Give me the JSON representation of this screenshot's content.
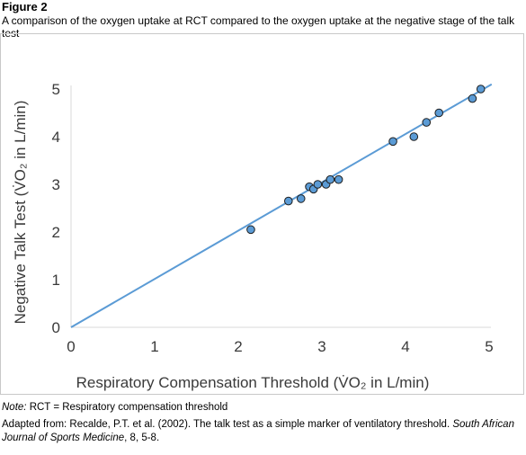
{
  "figure": {
    "label": "Figure 2",
    "subtitle": "A comparison of the oxygen uptake at RCT compared to the oxygen uptake at the negative stage of the talk test"
  },
  "note": {
    "prefix": "Note:",
    "text": " RCT = Respiratory compensation threshold"
  },
  "adapted": {
    "text": "Adapted from: Recalde, P.T. et al. (2002). The talk test as a simple marker of ventilatory threshold. ",
    "journal": "South African Journal of Sports Medicine",
    "suffix": ", 8, 5-8."
  },
  "chart_data": {
    "type": "scatter",
    "title": "",
    "xlabel": "Respiratory Compensation Threshold (V̇O₂ in L/min)",
    "ylabel": "Negative Talk Test (V̇O₂ in L/min)",
    "xlim": [
      0,
      5
    ],
    "ylim": [
      0,
      5
    ],
    "xticks": [
      0,
      1,
      2,
      3,
      4,
      5
    ],
    "yticks": [
      0,
      1,
      2,
      3,
      4,
      5
    ],
    "grid": false,
    "legend": "none",
    "point_color": "#5b9bd5",
    "line_color": "#5b9bd5",
    "points": [
      {
        "x": 2.15,
        "y": 2.05
      },
      {
        "x": 2.6,
        "y": 2.65
      },
      {
        "x": 2.75,
        "y": 2.7
      },
      {
        "x": 2.85,
        "y": 2.95
      },
      {
        "x": 2.9,
        "y": 2.9
      },
      {
        "x": 2.95,
        "y": 3.0
      },
      {
        "x": 3.05,
        "y": 3.0
      },
      {
        "x": 3.1,
        "y": 3.1
      },
      {
        "x": 3.2,
        "y": 3.1
      },
      {
        "x": 3.85,
        "y": 3.9
      },
      {
        "x": 4.1,
        "y": 4.0
      },
      {
        "x": 4.25,
        "y": 4.3
      },
      {
        "x": 4.4,
        "y": 4.5
      },
      {
        "x": 4.8,
        "y": 4.8
      },
      {
        "x": 4.9,
        "y": 5.0
      }
    ],
    "trendline": {
      "x": [
        0,
        5.03
      ],
      "y": [
        0,
        5.1
      ]
    }
  }
}
